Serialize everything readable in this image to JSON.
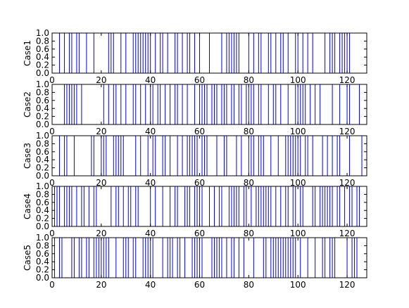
{
  "chart_data": [
    {
      "type": "line",
      "ylabel": "Case1",
      "xlim": [
        0,
        128
      ],
      "ylim": [
        0.0,
        1.0
      ],
      "xticks": [
        "0",
        "20",
        "40",
        "60",
        "80",
        "100",
        "120"
      ],
      "yticks": [
        "0.0",
        "0.2",
        "0.4",
        "0.6",
        "0.8",
        "1.0"
      ],
      "step_edges": [
        0,
        3,
        5,
        7,
        8,
        10,
        11,
        14,
        17,
        23,
        24,
        24,
        25,
        28,
        30,
        33,
        34,
        34,
        35,
        35,
        36,
        36,
        37,
        37,
        38,
        39,
        40,
        40,
        42,
        44,
        45,
        47,
        50,
        51,
        53,
        55,
        56,
        58,
        60,
        64,
        69,
        71,
        72,
        73,
        74,
        75,
        76,
        80,
        82,
        84,
        85,
        88,
        88,
        89,
        91,
        93,
        94,
        96,
        99,
        100,
        100,
        102,
        104,
        104,
        106,
        111,
        113,
        114,
        115,
        117,
        118,
        119,
        120,
        120,
        121,
        128
      ],
      "step_start": 1,
      "color": "#0000ff"
    },
    {
      "type": "line",
      "ylabel": "Case2",
      "xlim": [
        0,
        128
      ],
      "ylim": [
        0.0,
        1.0
      ],
      "xticks": [
        "0",
        "20",
        "40",
        "60",
        "80",
        "100",
        "120"
      ],
      "yticks": [
        "0.0",
        "0.2",
        "0.4",
        "0.6",
        "0.8",
        "1.0"
      ],
      "step_edges": [
        0,
        5,
        6,
        7,
        8,
        9,
        10,
        10,
        12,
        21,
        23,
        25,
        26,
        28,
        30,
        33,
        34,
        36,
        38,
        40,
        41,
        43,
        44,
        46,
        48,
        48,
        50,
        51,
        53,
        55,
        58,
        60,
        61,
        62,
        63,
        65,
        66,
        67,
        69,
        70,
        71,
        73,
        74,
        76,
        77,
        77,
        79,
        79,
        80,
        81,
        82,
        84,
        85,
        88,
        90,
        91,
        93,
        96,
        99,
        100,
        101,
        101,
        102,
        103,
        103,
        105,
        107,
        107,
        109,
        114,
        117,
        120,
        121,
        125,
        128
      ],
      "step_start": 1,
      "color": "#0000ff"
    },
    {
      "type": "line",
      "ylabel": "Case3",
      "xlim": [
        0,
        128
      ],
      "ylim": [
        0.0,
        1.0
      ],
      "xticks": [
        "0",
        "20",
        "40",
        "60",
        "80",
        "100",
        "120"
      ],
      "yticks": [
        "0.0",
        "0.2",
        "0.4",
        "0.6",
        "0.8",
        "1.0"
      ],
      "step_edges": [
        0,
        3,
        5,
        6,
        9,
        16,
        17,
        20,
        21,
        22,
        25,
        26,
        27,
        28,
        29,
        34,
        36,
        39,
        41,
        42,
        45,
        45,
        46,
        46,
        48,
        48,
        51,
        53,
        55,
        56,
        57,
        58,
        59,
        61,
        62,
        62,
        63,
        63,
        67,
        70,
        71,
        75,
        77,
        80,
        81,
        82,
        84,
        85,
        86,
        89,
        92,
        95,
        96,
        97,
        98,
        98,
        99,
        100,
        101,
        101,
        103,
        103,
        104,
        106,
        110,
        112,
        114,
        116,
        117,
        121,
        126,
        126,
        127
      ],
      "step_start": 1,
      "color": "#0000ff"
    },
    {
      "type": "line",
      "ylabel": "Case4",
      "xlim": [
        0,
        128
      ],
      "ylim": [
        0.0,
        1.0
      ],
      "xticks": [
        "0",
        "20",
        "40",
        "60",
        "80",
        "100",
        "120"
      ],
      "yticks": [
        "0.0",
        "0.2",
        "0.4",
        "0.6",
        "0.8",
        "1.0"
      ],
      "step_edges": [
        0,
        1,
        2,
        2,
        3,
        5,
        6,
        6,
        7,
        8,
        10,
        10,
        12,
        12,
        13,
        13,
        15,
        15,
        17,
        18,
        24,
        24,
        26,
        27,
        29,
        29,
        31,
        32,
        34,
        35,
        40,
        42,
        45,
        48,
        50,
        51,
        54,
        54,
        55,
        56,
        58,
        59,
        60,
        61,
        64,
        64,
        66,
        66,
        68,
        69,
        72,
        73,
        74,
        75,
        76,
        76,
        78,
        78,
        79,
        81,
        81,
        83,
        84,
        85,
        86,
        87,
        88,
        89,
        91,
        93,
        95,
        96,
        98,
        99,
        101,
        102,
        106,
        107,
        109,
        110,
        111,
        112,
        113,
        114,
        116,
        117,
        119,
        119,
        121,
        122,
        124,
        124,
        125,
        128
      ],
      "step_start": 1,
      "color": "#0000ff"
    },
    {
      "type": "line",
      "ylabel": "Case5",
      "xlim": [
        0,
        128
      ],
      "ylim": [
        0.0,
        1.0
      ],
      "xticks": [
        "0",
        "20",
        "40",
        "60",
        "80",
        "100",
        "120"
      ],
      "yticks": [
        "0.0",
        "0.2",
        "0.4",
        "0.6",
        "0.8",
        "1.0"
      ],
      "step_edges": [
        0,
        0,
        1,
        3,
        4,
        8,
        9,
        11,
        12,
        14,
        15,
        15,
        17,
        18,
        19,
        20,
        21,
        22,
        23,
        26,
        29,
        30,
        31,
        33,
        34,
        37,
        38,
        39,
        40,
        41,
        45,
        47,
        48,
        49,
        51,
        52,
        54,
        57,
        58,
        59,
        60,
        60,
        61,
        65,
        66,
        67,
        68,
        69,
        71,
        73,
        74,
        76,
        78,
        82,
        86,
        87,
        89,
        90,
        91,
        92,
        93,
        94,
        95,
        95,
        96,
        97,
        98,
        99,
        101,
        101,
        104,
        107,
        110,
        111,
        113,
        114,
        115,
        120,
        122,
        123,
        124,
        128
      ],
      "step_start": 1,
      "color": "#0000ff"
    }
  ]
}
